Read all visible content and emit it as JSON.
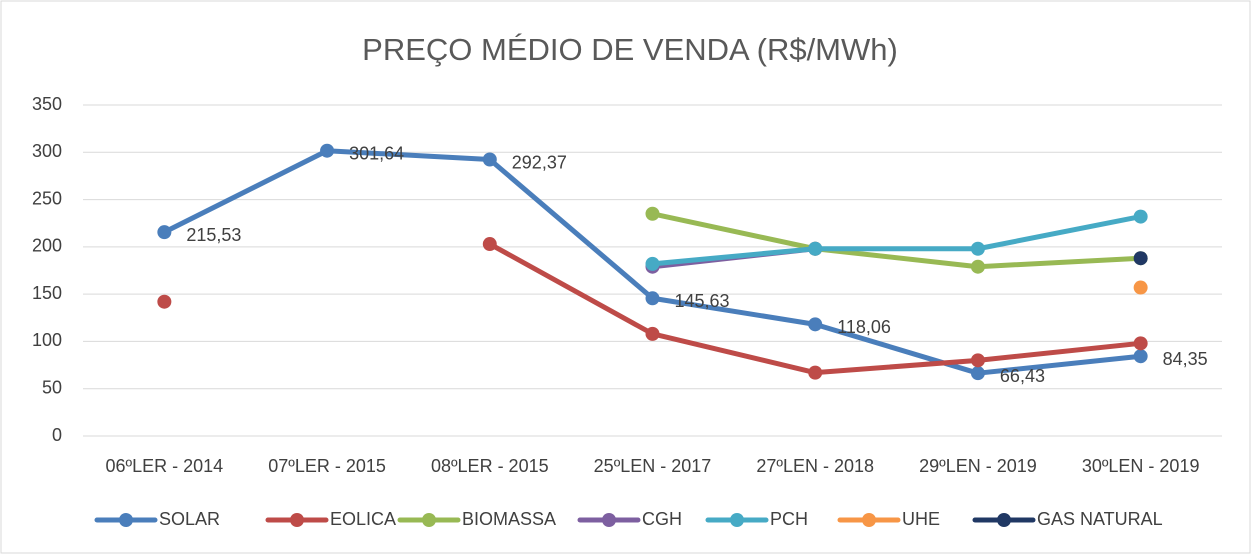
{
  "chart_data": {
    "type": "line",
    "title": "PREÇO MÉDIO DE VENDA (R$/MWh)",
    "categories": [
      "06ºLER - 2014",
      "07ºLER - 2015",
      "08ºLER - 2015",
      "25ºLEN - 2017",
      "27ºLEN - 2018",
      "29ºLEN - 2019",
      "30ºLEN - 2019"
    ],
    "series": [
      {
        "name": "SOLAR",
        "color": "#4a7ebb",
        "values": [
          215.53,
          301.64,
          292.37,
          145.63,
          118.06,
          66.43,
          84.35
        ],
        "value_labels": [
          "215,53",
          "301,64",
          "292,37",
          "145,63",
          "118,06",
          "66,43",
          "84,35"
        ]
      },
      {
        "name": "EOLICA",
        "color": "#be4b48",
        "values": [
          142,
          null,
          203,
          108,
          67,
          80,
          98
        ]
      },
      {
        "name": "BIOMASSA",
        "color": "#98b954",
        "values": [
          null,
          null,
          null,
          235,
          198,
          179,
          188
        ]
      },
      {
        "name": "CGH",
        "color": "#7d5fa0",
        "values": [
          null,
          null,
          null,
          179,
          198,
          null,
          null
        ]
      },
      {
        "name": "PCH",
        "color": "#46aac5",
        "values": [
          null,
          null,
          null,
          182,
          198,
          198,
          232
        ]
      },
      {
        "name": "UHE",
        "color": "#f79646",
        "values": [
          null,
          null,
          null,
          null,
          null,
          null,
          157
        ]
      },
      {
        "name": "GAS NATURAL",
        "color": "#203864",
        "values": [
          null,
          null,
          null,
          null,
          null,
          null,
          188
        ]
      }
    ],
    "ylim": [
      0,
      350
    ],
    "yticks": [
      0,
      50,
      100,
      150,
      200,
      250,
      300,
      350
    ],
    "grid": true,
    "legend": "bottom"
  }
}
